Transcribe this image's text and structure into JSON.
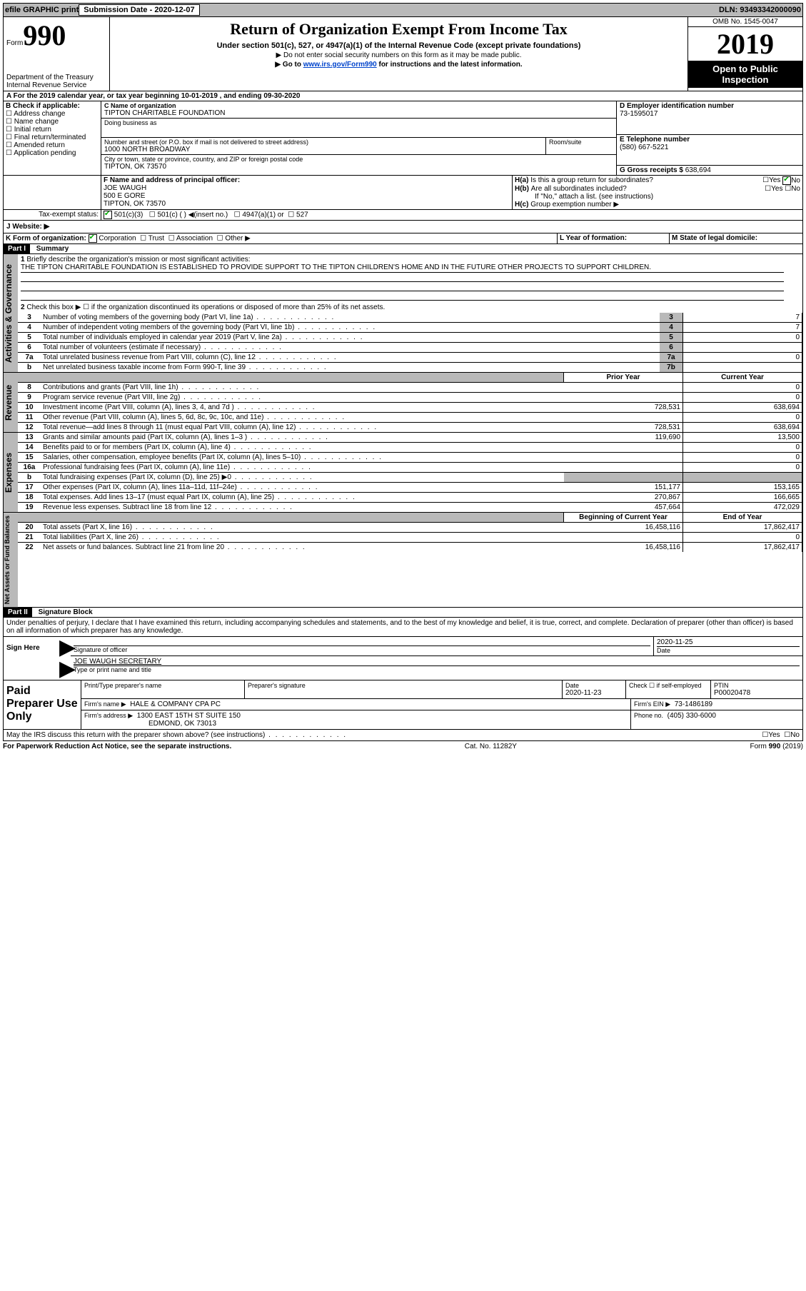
{
  "topbar": {
    "efile": "efile GRAPHIC print",
    "submission_label": "Submission Date - 2020-12-07",
    "dln": "DLN: 93493342000090"
  },
  "header": {
    "form_label": "Form",
    "form_number": "990",
    "title": "Return of Organization Exempt From Income Tax",
    "subtitle": "Under section 501(c), 527, or 4947(a)(1) of the Internal Revenue Code (except private foundations)",
    "line1": "▶ Do not enter social security numbers on this form as it may be made public.",
    "line2_pre": "▶ Go to ",
    "line2_link": "www.irs.gov/Form990",
    "line2_post": " for instructions and the latest information.",
    "dept1": "Department of the Treasury",
    "dept2": "Internal Revenue Service",
    "omb": "OMB No. 1545-0047",
    "year": "2019",
    "public1": "Open to Public",
    "public2": "Inspection"
  },
  "sectionA": {
    "line": "A For the 2019 calendar year, or tax year beginning 10-01-2019   , and ending 09-30-2020"
  },
  "sectionB": {
    "label": "B Check if applicable:",
    "opts": [
      "Address change",
      "Name change",
      "Initial return",
      "Final return/terminated",
      "Amended return",
      "Application pending"
    ]
  },
  "sectionC": {
    "label": "C Name of organization",
    "name": "TIPTON CHARITABLE FOUNDATION",
    "dba_label": "Doing business as",
    "street_label": "Number and street (or P.O. box if mail is not delivered to street address)",
    "street": "1000 NORTH BROADWAY",
    "room_label": "Room/suite",
    "city_label": "City or town, state or province, country, and ZIP or foreign postal code",
    "city": "TIPTON, OK  73570"
  },
  "sectionD": {
    "label": "D Employer identification number",
    "value": "73-1595017"
  },
  "sectionE": {
    "label": "E Telephone number",
    "value": "(580) 667-5221"
  },
  "sectionG": {
    "label": "G Gross receipts $",
    "value": "638,694"
  },
  "sectionF": {
    "label": "F Name and address of principal officer:",
    "name": "JOE WAUGH",
    "street": "500 E GORE",
    "city": "TIPTON, OK  73570"
  },
  "sectionH": {
    "a": "Is this a group return for subordinates?",
    "b": "Are all subordinates included?",
    "b_note": "If \"No,\" attach a list. (see instructions)",
    "c": "Group exemption number ▶",
    "yes": "Yes",
    "no": "No"
  },
  "taxexempt": {
    "label": "Tax-exempt status:",
    "c3": "501(c)(3)",
    "c": "501(c) (  ) ◀(insert no.)",
    "a1": "4947(a)(1) or",
    "s527": "527"
  },
  "sectionJ": {
    "label": "J   Website: ▶"
  },
  "sectionK": {
    "label": "K Form of organization:",
    "corp": "Corporation",
    "trust": "Trust",
    "assoc": "Association",
    "other": "Other ▶"
  },
  "sectionL": {
    "label": "L Year of formation:"
  },
  "sectionM": {
    "label": "M State of legal domicile:"
  },
  "partI": {
    "header": "Part I",
    "title": "Summary",
    "q1": "Briefly describe the organization's mission or most significant activities:",
    "mission": "THE TIPTON CHARITABLE FOUNDATION IS ESTABLISHED TO PROVIDE SUPPORT TO THE TIPTON CHILDREN'S HOME AND IN THE FUTURE OTHER PROJECTS TO SUPPORT CHILDREN.",
    "q2": "Check this box ▶ ☐ if the organization discontinued its operations or disposed of more than 25% of its net assets.",
    "rows_gov": [
      {
        "n": "3",
        "t": "Number of voting members of the governing body (Part VI, line 1a)",
        "box": "3",
        "v": "7"
      },
      {
        "n": "4",
        "t": "Number of independent voting members of the governing body (Part VI, line 1b)",
        "box": "4",
        "v": "7"
      },
      {
        "n": "5",
        "t": "Total number of individuals employed in calendar year 2019 (Part V, line 2a)",
        "box": "5",
        "v": "0"
      },
      {
        "n": "6",
        "t": "Total number of volunteers (estimate if necessary)",
        "box": "6",
        "v": ""
      },
      {
        "n": "7a",
        "t": "Total unrelated business revenue from Part VIII, column (C), line 12",
        "box": "7a",
        "v": "0"
      },
      {
        "n": "b",
        "t": "Net unrelated business taxable income from Form 990-T, line 39",
        "box": "7b",
        "v": ""
      }
    ],
    "col_prior": "Prior Year",
    "col_curr": "Current Year",
    "rows_rev": [
      {
        "n": "8",
        "t": "Contributions and grants (Part VIII, line 1h)",
        "p": "",
        "c": "0"
      },
      {
        "n": "9",
        "t": "Program service revenue (Part VIII, line 2g)",
        "p": "",
        "c": "0"
      },
      {
        "n": "10",
        "t": "Investment income (Part VIII, column (A), lines 3, 4, and 7d )",
        "p": "728,531",
        "c": "638,694"
      },
      {
        "n": "11",
        "t": "Other revenue (Part VIII, column (A), lines 5, 6d, 8c, 9c, 10c, and 11e)",
        "p": "",
        "c": "0"
      },
      {
        "n": "12",
        "t": "Total revenue—add lines 8 through 11 (must equal Part VIII, column (A), line 12)",
        "p": "728,531",
        "c": "638,694"
      }
    ],
    "rows_exp": [
      {
        "n": "13",
        "t": "Grants and similar amounts paid (Part IX, column (A), lines 1–3 )",
        "p": "119,690",
        "c": "13,500"
      },
      {
        "n": "14",
        "t": "Benefits paid to or for members (Part IX, column (A), line 4)",
        "p": "",
        "c": "0"
      },
      {
        "n": "15",
        "t": "Salaries, other compensation, employee benefits (Part IX, column (A), lines 5–10)",
        "p": "",
        "c": "0"
      },
      {
        "n": "16a",
        "t": "Professional fundraising fees (Part IX, column (A), line 11e)",
        "p": "",
        "c": "0"
      },
      {
        "n": "b",
        "t": "Total fundraising expenses (Part IX, column (D), line 25) ▶0",
        "p": "",
        "c": "",
        "shade": true
      },
      {
        "n": "17",
        "t": "Other expenses (Part IX, column (A), lines 11a–11d, 11f–24e)",
        "p": "151,177",
        "c": "153,165"
      },
      {
        "n": "18",
        "t": "Total expenses. Add lines 13–17 (must equal Part IX, column (A), line 25)",
        "p": "270,867",
        "c": "166,665"
      },
      {
        "n": "19",
        "t": "Revenue less expenses. Subtract line 18 from line 12",
        "p": "457,664",
        "c": "472,029"
      }
    ],
    "col_beg": "Beginning of Current Year",
    "col_end": "End of Year",
    "rows_net": [
      {
        "n": "20",
        "t": "Total assets (Part X, line 16)",
        "p": "16,458,116",
        "c": "17,862,417"
      },
      {
        "n": "21",
        "t": "Total liabilities (Part X, line 26)",
        "p": "",
        "c": "0"
      },
      {
        "n": "22",
        "t": "Net assets or fund balances. Subtract line 21 from line 20",
        "p": "16,458,116",
        "c": "17,862,417"
      }
    ],
    "vlabels": {
      "gov": "Activities & Governance",
      "rev": "Revenue",
      "exp": "Expenses",
      "net": "Net Assets or Fund Balances"
    }
  },
  "partII": {
    "header": "Part II",
    "title": "Signature Block",
    "jurat": "Under penalties of perjury, I declare that I have examined this return, including accompanying schedules and statements, and to the best of my knowledge and belief, it is true, correct, and complete. Declaration of preparer (other than officer) is based on all information of which preparer has any knowledge.",
    "sign_here": "Sign Here",
    "sig_officer": "Signature of officer",
    "date": "Date",
    "date_val": "2020-11-25",
    "name_title": "JOE WAUGH  SECRETARY",
    "type_label": "Type or print name and title",
    "paid": "Paid Preparer Use Only",
    "prep_name": "Print/Type preparer's name",
    "prep_sig": "Preparer's signature",
    "prep_date": "Date",
    "prep_date_val": "2020-11-23",
    "check_self": "Check ☐ if self-employed",
    "ptin_label": "PTIN",
    "ptin": "P00020478",
    "firm_name_label": "Firm's name   ▶",
    "firm_name": "HALE & COMPANY CPA PC",
    "firm_ein_label": "Firm's EIN ▶",
    "firm_ein": "73-1486189",
    "firm_addr_label": "Firm's address ▶",
    "firm_addr1": "1300 EAST 15TH ST SUITE 150",
    "firm_addr2": "EDMOND, OK  73013",
    "phone_label": "Phone no.",
    "phone": "(405) 330-6000",
    "discuss": "May the IRS discuss this return with the preparer shown above? (see instructions)"
  },
  "footer": {
    "pra": "For Paperwork Reduction Act Notice, see the separate instructions.",
    "cat": "Cat. No. 11282Y",
    "form": "Form 990 (2019)"
  }
}
